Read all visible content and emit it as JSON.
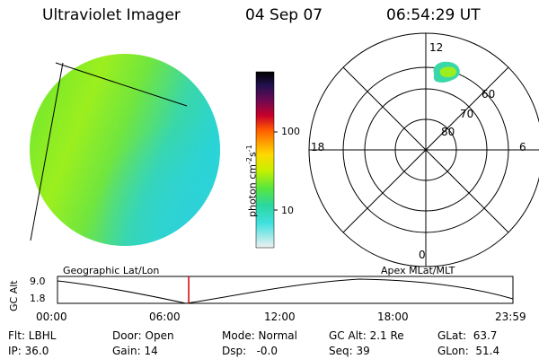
{
  "header": {
    "instrument": "Ultraviolet Imager",
    "date": "04 Sep 07",
    "time": "06:54:29 UT"
  },
  "colorbar": {
    "label": "photon cm",
    "label_sup1": "-2",
    "label_mid": "s",
    "label_sup2": "-1",
    "tick_100": "100",
    "tick_10": "10"
  },
  "polar": {
    "mlt_top": "12",
    "mlt_left": "18",
    "mlt_right": "6",
    "mlt_bottom": "0",
    "lat_60": "60",
    "lat_70": "70",
    "lat_80": "80"
  },
  "orbit": {
    "left_title": "Geographic Lat/Lon",
    "right_title": "Apex MLat/MLT",
    "ylabel": "GC Alt",
    "ymax": "9.0",
    "ymin": "1.8",
    "xticks": [
      "00:00",
      "06:00",
      "12:00",
      "18:00",
      "23:59"
    ],
    "current_time_hours": 6.91
  },
  "status": {
    "flt": "Flt: LBHL",
    "ip": "IP: 36.0",
    "door": "Door: Open",
    "gain": "Gain: 14",
    "mode": "Mode: Normal",
    "dsp": "Dsp:   -0.0",
    "gc_alt": "GC Alt: 2.1 Re",
    "seq": "Seq: 39",
    "glat": "GLat:  63.7",
    "glon": "GLon:  51.4"
  }
}
